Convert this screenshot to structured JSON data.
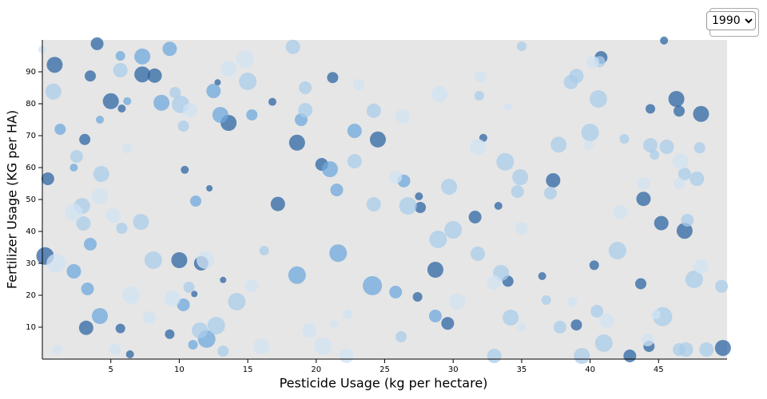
{
  "dropdown": {
    "options": [
      "1990"
    ],
    "selected": "1990"
  },
  "chart_data": {
    "type": "scatter",
    "x_label": "Pesticide Usage (kg per hectare)",
    "y_label": "Fertilizer Usage (KG per HA)",
    "xlim": [
      0,
      50
    ],
    "ylim": [
      0,
      100
    ],
    "xticks": [
      5,
      10,
      15,
      20,
      25,
      30,
      35,
      40,
      45
    ],
    "yticks": [
      10,
      20,
      30,
      40,
      50,
      60,
      70,
      80,
      90
    ],
    "background": "#e6e6e6",
    "series": [
      {
        "color": "#2e65a3",
        "x": [
          0.9,
          0.4,
          0.2,
          3.2,
          3.1,
          3.5,
          4.0,
          5.0,
          5.8,
          5.7,
          6.4,
          7.3,
          8.2,
          9.3,
          10.0,
          10.4,
          11.1,
          11.6,
          12.2,
          12.8,
          13.2,
          13.6,
          16.8,
          17.2,
          18.6,
          20.4,
          21.2,
          24.5,
          27.5,
          27.6,
          27.4,
          28.7,
          29.6,
          31.6,
          32.2,
          33.3,
          34.0,
          36.5,
          37.3,
          39.0,
          40.3,
          40.8,
          42.9,
          43.7,
          43.9,
          44.3,
          44.4,
          45.2,
          45.4,
          46.5,
          46.9,
          48.1,
          49.7,
          46.3
        ],
        "values": [
          92.2,
          56.5,
          32.3,
          9.8,
          68.8,
          88.7,
          98.8,
          80.8,
          78.5,
          9.6,
          1.5,
          89.2,
          88.8,
          7.8,
          31.0,
          59.3,
          20.4,
          30.0,
          53.5,
          86.7,
          24.8,
          74.0,
          80.6,
          48.6,
          67.8,
          61.0,
          88.2,
          68.8,
          51.0,
          47.5,
          19.5,
          28.0,
          11.2,
          44.5,
          69.3,
          48.0,
          24.4,
          26.0,
          56.0,
          10.7,
          29.4,
          94.5,
          1.0,
          23.6,
          50.2,
          4.0,
          78.4,
          42.6,
          99.8,
          77.7,
          40.2,
          76.8,
          3.5,
          81.5
        ],
        "sizes": [
          10,
          8,
          11,
          9,
          7,
          7,
          8,
          10,
          5,
          6,
          5,
          10,
          9,
          6,
          10,
          5,
          4,
          9,
          4,
          4,
          4,
          10,
          5,
          9,
          10,
          8,
          7,
          10,
          5,
          7,
          6,
          10,
          8,
          8,
          5,
          5,
          7,
          5,
          9,
          7,
          6,
          8,
          8,
          7,
          9,
          7,
          6,
          9,
          5,
          7,
          10,
          10,
          10,
          10
        ]
      },
      {
        "color": "#6fa8dc",
        "x": [
          1.3,
          2.3,
          2.3,
          3.3,
          3.5,
          4.2,
          4.2,
          5.7,
          6.2,
          7.3,
          9.3,
          8.7,
          10.3,
          11.0,
          11.2,
          12.0,
          12.5,
          13.0,
          15.3,
          18.6,
          18.9,
          21.0,
          21.5,
          22.8,
          21.6,
          24.1,
          26.4,
          25.8,
          28.7
        ],
        "values": [
          72.0,
          60.0,
          27.5,
          22.0,
          36.0,
          75.0,
          13.5,
          95.0,
          80.8,
          94.8,
          97.2,
          80.3,
          17.0,
          4.5,
          49.5,
          6.3,
          84.0,
          76.5,
          76.5,
          26.3,
          75.0,
          59.5,
          53.0,
          71.5,
          33.2,
          23.0,
          55.8,
          21.0,
          13.5
        ],
        "sizes": [
          7,
          5,
          9,
          8,
          8,
          5,
          10,
          6,
          5,
          10,
          9,
          10,
          8,
          6,
          7,
          11,
          9,
          10,
          7,
          11,
          8,
          10,
          8,
          9,
          11,
          12,
          8,
          8,
          8
        ]
      },
      {
        "color": "#a9cce9",
        "x": [
          0.8,
          2.5,
          2.9,
          3.0,
          4.3,
          5.7,
          5.8,
          7.2,
          8.1,
          9.7,
          10.1,
          10.3,
          10.7,
          11.5,
          12.7,
          13.2,
          14.2,
          15.0,
          16.2,
          18.3,
          19.2,
          19.2,
          22.8,
          24.2,
          24.2,
          26.2,
          26.7,
          28.9,
          29.7,
          30.0,
          31.8,
          31.9,
          33.5,
          33.8,
          34.2,
          34.7,
          34.9,
          35.0,
          36.8,
          37.1,
          37.7,
          37.8,
          38.6,
          39.0,
          40.0,
          40.6,
          40.5,
          41.0,
          42.0,
          42.5,
          44.4,
          44.7,
          45.3,
          45.6,
          46.9,
          47.1,
          47.6,
          47.8,
          48.0,
          49.6,
          46.5,
          47.0,
          48.5,
          39.4,
          33.0,
          40.7
        ],
        "values": [
          83.8,
          63.5,
          48.0,
          42.5,
          58.0,
          90.5,
          41.0,
          43.0,
          31.0,
          83.5,
          79.8,
          73.0,
          22.5,
          9.0,
          10.5,
          2.5,
          18.0,
          87.0,
          34.0,
          97.8,
          85.0,
          78.0,
          62.0,
          48.5,
          77.8,
          7.0,
          48.0,
          37.5,
          54.0,
          40.5,
          33.0,
          82.5,
          27.0,
          61.8,
          13.0,
          52.5,
          57.0,
          98.0,
          18.5,
          52.0,
          67.2,
          10.0,
          86.8,
          88.7,
          71.0,
          81.5,
          15.0,
          5.0,
          34.0,
          69.0,
          67.0,
          64.0,
          13.3,
          66.5,
          58.0,
          43.5,
          25.0,
          56.5,
          66.2,
          22.8,
          3.0,
          3.0,
          3.0,
          1.0,
          1.0,
          93.2
        ],
        "sizes": [
          10,
          8,
          10,
          9,
          10,
          9,
          7,
          10,
          11,
          7,
          11,
          7,
          7,
          10,
          11,
          7,
          11,
          11,
          6,
          9,
          8,
          9,
          9,
          9,
          9,
          7,
          11,
          11,
          10,
          11,
          9,
          6,
          10,
          11,
          10,
          8,
          10,
          6,
          6,
          8,
          10,
          8,
          9,
          9,
          11,
          11,
          8,
          11,
          11,
          6,
          9,
          6,
          12,
          9,
          8,
          8,
          11,
          9,
          7,
          8,
          8,
          9,
          9,
          10,
          9,
          7
        ]
      },
      {
        "color": "#d0e3f3",
        "x": [
          0.0,
          1.0,
          1.1,
          2.3,
          4.2,
          5.2,
          5.3,
          6.2,
          6.5,
          7.8,
          9.5,
          10.8,
          11.9,
          13.6,
          14.8,
          15.3,
          16.0,
          19.5,
          20.5,
          21.3,
          22.3,
          22.2,
          23.1,
          25.8,
          26.3,
          29.0,
          30.3,
          31.8,
          32.0,
          33.0,
          34.0,
          35.0,
          35.0,
          38.7,
          39.9,
          40.2,
          41.2,
          42.2,
          43.9,
          44.2,
          44.8,
          46.5,
          46.6,
          48.1
        ],
        "values": [
          97,
          30,
          3,
          46,
          51,
          45,
          3,
          66,
          20,
          13,
          19,
          78,
          31,
          91,
          94,
          23,
          4,
          9,
          4,
          11,
          14,
          1,
          86,
          57,
          76,
          83,
          18,
          66.5,
          88.5,
          24,
          79,
          10,
          41,
          18,
          67,
          93,
          12,
          46,
          55,
          6,
          14,
          55,
          62,
          29
        ],
        "sizes": [
          5,
          12,
          6,
          11,
          10,
          9,
          7,
          6,
          11,
          8,
          10,
          9,
          11,
          10,
          11,
          8,
          10,
          9,
          11,
          5,
          6,
          9,
          7,
          8,
          9,
          10,
          10,
          10,
          7,
          9,
          5,
          5,
          8,
          6,
          6,
          8,
          9,
          9,
          8,
          8,
          6,
          7,
          10,
          9
        ]
      }
    ]
  }
}
